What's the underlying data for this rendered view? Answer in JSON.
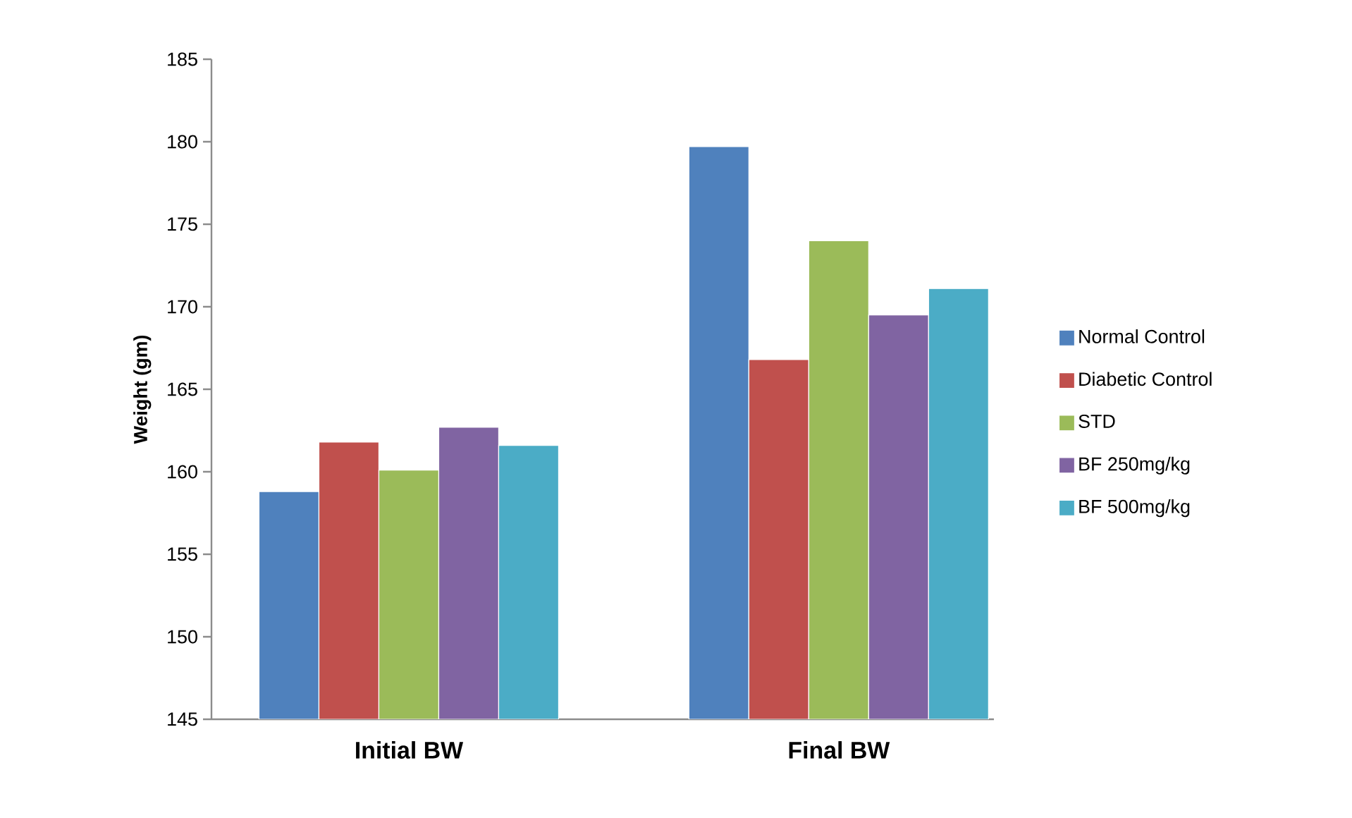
{
  "chart_data": {
    "type": "bar",
    "ylabel": "Weight (gm)",
    "categories": [
      "Initial BW",
      "Final BW"
    ],
    "series": [
      {
        "name": "Normal Control",
        "color": "#4f81bd",
        "values": [
          158.8,
          179.7
        ]
      },
      {
        "name": "Diabetic Control",
        "color": "#c0504d",
        "values": [
          161.8,
          166.8
        ]
      },
      {
        "name": "STD",
        "color": "#9bbb59",
        "values": [
          160.1,
          174.0
        ]
      },
      {
        "name": "BF 250mg/kg",
        "color": "#8064a2",
        "values": [
          162.7,
          169.5
        ]
      },
      {
        "name": "BF 500mg/kg",
        "color": "#4bacc6",
        "values": [
          161.6,
          171.1
        ]
      }
    ],
    "ylim": [
      145,
      185
    ],
    "yticks": [
      145,
      150,
      155,
      160,
      165,
      170,
      175,
      180,
      185
    ],
    "legend": "right"
  }
}
